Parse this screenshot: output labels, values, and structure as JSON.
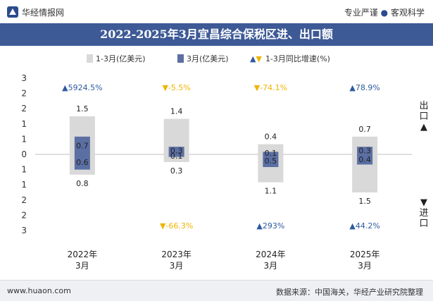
{
  "header": {
    "brand": "华经情报网",
    "tagline_left": "专业严谨",
    "tagline_sep": "●",
    "tagline_right": "客观科学"
  },
  "colors": {
    "title_bg": "#3e5a96",
    "total_bar": "#d9d9d9",
    "month_bar": "#5b6fa3",
    "up": "#2e5aa0",
    "down": "#f0b400",
    "footer_bg": "#eef0f4"
  },
  "footer": {
    "website": "www.huaon.com",
    "source": "数据来源：中国海关，华经产业研究院整理"
  },
  "side": {
    "export": [
      "出",
      "口",
      "▲"
    ],
    "import": [
      "▼",
      "进",
      "口"
    ]
  },
  "chart_data": {
    "type": "bar",
    "title": "2022-2025年3月宜昌综合保税区进、出口额",
    "legend": [
      "1-3月(亿美元)",
      "3月(亿美元)",
      "1-3月同比增速(%)"
    ],
    "categories": [
      "2022年\n3月",
      "2023年\n3月",
      "2024年\n3月",
      "2025年\n3月"
    ],
    "y_tick_labels": [
      "3",
      "2",
      "2",
      "1",
      "1",
      "0",
      "1",
      "1",
      "2",
      "2",
      "3"
    ],
    "ylim": [
      -3,
      3
    ],
    "series": [
      {
        "name": "1-3月(亿美元)",
        "export": [
          1.5,
          1.4,
          0.4,
          0.7
        ],
        "import": [
          0.8,
          0.3,
          1.1,
          1.5
        ]
      },
      {
        "name": "3月(亿美元)",
        "export": [
          0.7,
          0.3,
          0.1,
          0.3
        ],
        "import": [
          0.6,
          0.1,
          0.5,
          0.4
        ]
      }
    ],
    "growth": {
      "name": "1-3月同比增速(%)",
      "export": [
        {
          "dir": "up",
          "text": "5924.5%"
        },
        {
          "dir": "down",
          "text": "-5.5%"
        },
        {
          "dir": "down",
          "text": "-74.1%"
        },
        {
          "dir": "up",
          "text": "78.9%"
        }
      ],
      "import": [
        null,
        {
          "dir": "down",
          "text": "-66.3%"
        },
        {
          "dir": "up",
          "text": "293%"
        },
        {
          "dir": "up",
          "text": "44.2%"
        }
      ]
    }
  }
}
